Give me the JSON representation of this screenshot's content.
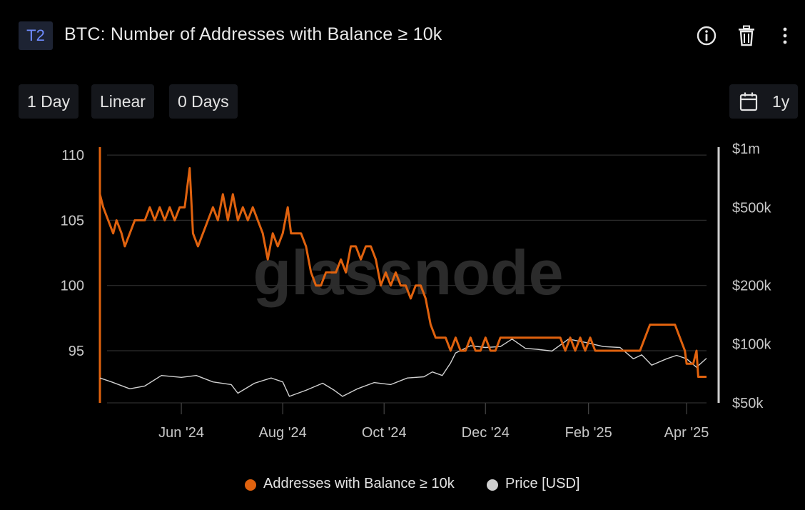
{
  "header": {
    "badge": "T2",
    "title": "BTC: Number of Addresses with Balance ≥ 10k",
    "icons": [
      "info-icon",
      "trash-icon",
      "more-vertical-icon"
    ]
  },
  "toolbar": {
    "resolution": "1 Day",
    "scale": "Linear",
    "moving_average": "0 Days",
    "range": "1y",
    "range_icon": "calendar-icon"
  },
  "watermark": "glassnode",
  "legend": [
    {
      "label": "Addresses with Balance ≥ 10k",
      "color": "#e0620e"
    },
    {
      "label": "Price [USD]",
      "color": "#d0d0d0"
    }
  ],
  "chart_data": {
    "type": "line",
    "x_ticks": [
      "Jun '24",
      "Aug '24",
      "Oct '24",
      "Dec '24",
      "Feb '25",
      "Apr '25"
    ],
    "x_range": [
      "2024-04-13",
      "2025-04-13"
    ],
    "y_left": {
      "ticks": [
        "110",
        "105",
        "100",
        "95"
      ],
      "range": [
        91,
        110.5
      ]
    },
    "y_right": {
      "scale": "log",
      "ticks": [
        "$1m",
        "$500k",
        "$200k",
        "$100k",
        "$50k"
      ],
      "range": [
        50000,
        1000000
      ]
    },
    "grid": true,
    "legend_position": "bottom",
    "series": [
      {
        "name": "Addresses with Balance ≥ 10k",
        "axis": "left",
        "color": "#e0620e",
        "points": [
          [
            "2024-04-13",
            107
          ],
          [
            "2024-04-15",
            106
          ],
          [
            "2024-04-18",
            105
          ],
          [
            "2024-04-21",
            104
          ],
          [
            "2024-04-23",
            105
          ],
          [
            "2024-04-26",
            104
          ],
          [
            "2024-04-28",
            103
          ],
          [
            "2024-05-01",
            104
          ],
          [
            "2024-05-04",
            105
          ],
          [
            "2024-05-07",
            105
          ],
          [
            "2024-05-10",
            105
          ],
          [
            "2024-05-13",
            106
          ],
          [
            "2024-05-16",
            105
          ],
          [
            "2024-05-19",
            106
          ],
          [
            "2024-05-22",
            105
          ],
          [
            "2024-05-25",
            106
          ],
          [
            "2024-05-28",
            105
          ],
          [
            "2024-05-31",
            106
          ],
          [
            "2024-06-03",
            106
          ],
          [
            "2024-06-06",
            109
          ],
          [
            "2024-06-08",
            104
          ],
          [
            "2024-06-11",
            103
          ],
          [
            "2024-06-14",
            104
          ],
          [
            "2024-06-17",
            105
          ],
          [
            "2024-06-20",
            106
          ],
          [
            "2024-06-23",
            105
          ],
          [
            "2024-06-26",
            107
          ],
          [
            "2024-06-29",
            105
          ],
          [
            "2024-07-02",
            107
          ],
          [
            "2024-07-05",
            105
          ],
          [
            "2024-07-08",
            106
          ],
          [
            "2024-07-11",
            105
          ],
          [
            "2024-07-14",
            106
          ],
          [
            "2024-07-17",
            105
          ],
          [
            "2024-07-20",
            104
          ],
          [
            "2024-07-23",
            102
          ],
          [
            "2024-07-26",
            104
          ],
          [
            "2024-07-29",
            103
          ],
          [
            "2024-08-01",
            104
          ],
          [
            "2024-08-04",
            106
          ],
          [
            "2024-08-06",
            104
          ],
          [
            "2024-08-09",
            104
          ],
          [
            "2024-08-12",
            104
          ],
          [
            "2024-08-15",
            103
          ],
          [
            "2024-08-18",
            101
          ],
          [
            "2024-08-21",
            100
          ],
          [
            "2024-08-24",
            100
          ],
          [
            "2024-08-27",
            101
          ],
          [
            "2024-08-30",
            101
          ],
          [
            "2024-09-02",
            101
          ],
          [
            "2024-09-05",
            102
          ],
          [
            "2024-09-08",
            101
          ],
          [
            "2024-09-11",
            103
          ],
          [
            "2024-09-14",
            103
          ],
          [
            "2024-09-17",
            102
          ],
          [
            "2024-09-20",
            103
          ],
          [
            "2024-09-23",
            103
          ],
          [
            "2024-09-26",
            102
          ],
          [
            "2024-09-29",
            100
          ],
          [
            "2024-10-02",
            101
          ],
          [
            "2024-10-05",
            100
          ],
          [
            "2024-10-08",
            101
          ],
          [
            "2024-10-11",
            100
          ],
          [
            "2024-10-14",
            100
          ],
          [
            "2024-10-17",
            99
          ],
          [
            "2024-10-20",
            100
          ],
          [
            "2024-10-23",
            100
          ],
          [
            "2024-10-26",
            99
          ],
          [
            "2024-10-29",
            97
          ],
          [
            "2024-11-01",
            96
          ],
          [
            "2024-11-04",
            96
          ],
          [
            "2024-11-07",
            96
          ],
          [
            "2024-11-10",
            95
          ],
          [
            "2024-11-13",
            96
          ],
          [
            "2024-11-16",
            95
          ],
          [
            "2024-11-19",
            95
          ],
          [
            "2024-11-22",
            96
          ],
          [
            "2024-11-25",
            95
          ],
          [
            "2024-11-28",
            95
          ],
          [
            "2024-12-01",
            96
          ],
          [
            "2024-12-04",
            95
          ],
          [
            "2024-12-07",
            95
          ],
          [
            "2024-12-10",
            96
          ],
          [
            "2024-12-13",
            96
          ],
          [
            "2024-12-16",
            96
          ],
          [
            "2024-12-19",
            96
          ],
          [
            "2024-12-22",
            96
          ],
          [
            "2024-12-25",
            96
          ],
          [
            "2024-12-28",
            96
          ],
          [
            "2024-12-31",
            96
          ],
          [
            "2025-01-03",
            96
          ],
          [
            "2025-01-06",
            96
          ],
          [
            "2025-01-09",
            96
          ],
          [
            "2025-01-12",
            96
          ],
          [
            "2025-01-15",
            96
          ],
          [
            "2025-01-18",
            95
          ],
          [
            "2025-01-21",
            96
          ],
          [
            "2025-01-24",
            95
          ],
          [
            "2025-01-27",
            96
          ],
          [
            "2025-01-30",
            95
          ],
          [
            "2025-02-02",
            96
          ],
          [
            "2025-02-05",
            95
          ],
          [
            "2025-02-08",
            95
          ],
          [
            "2025-02-11",
            95
          ],
          [
            "2025-02-14",
            95
          ],
          [
            "2025-02-17",
            95
          ],
          [
            "2025-02-20",
            95
          ],
          [
            "2025-02-23",
            95
          ],
          [
            "2025-02-26",
            95
          ],
          [
            "2025-03-01",
            95
          ],
          [
            "2025-03-04",
            95
          ],
          [
            "2025-03-07",
            96
          ],
          [
            "2025-03-10",
            97
          ],
          [
            "2025-03-13",
            97
          ],
          [
            "2025-03-16",
            97
          ],
          [
            "2025-03-19",
            97
          ],
          [
            "2025-03-22",
            97
          ],
          [
            "2025-03-25",
            97
          ],
          [
            "2025-03-28",
            96
          ],
          [
            "2025-03-31",
            95
          ],
          [
            "2025-04-01",
            94
          ],
          [
            "2025-04-03",
            94
          ],
          [
            "2025-04-05",
            94
          ],
          [
            "2025-04-07",
            95
          ],
          [
            "2025-04-08",
            93
          ],
          [
            "2025-04-10",
            93
          ],
          [
            "2025-04-13",
            93
          ]
        ]
      },
      {
        "name": "Price [USD]",
        "axis": "right",
        "color": "#d0d0d0",
        "points": [
          [
            "2024-04-13",
            67000
          ],
          [
            "2024-04-20",
            64000
          ],
          [
            "2024-05-01",
            59000
          ],
          [
            "2024-05-10",
            61000
          ],
          [
            "2024-05-20",
            69000
          ],
          [
            "2024-06-01",
            67500
          ],
          [
            "2024-06-10",
            69000
          ],
          [
            "2024-06-20",
            64000
          ],
          [
            "2024-07-01",
            62000
          ],
          [
            "2024-07-05",
            56000
          ],
          [
            "2024-07-15",
            63000
          ],
          [
            "2024-07-25",
            67000
          ],
          [
            "2024-08-01",
            64000
          ],
          [
            "2024-08-05",
            54000
          ],
          [
            "2024-08-15",
            58000
          ],
          [
            "2024-08-25",
            63000
          ],
          [
            "2024-09-01",
            58000
          ],
          [
            "2024-09-06",
            54000
          ],
          [
            "2024-09-15",
            59000
          ],
          [
            "2024-09-25",
            63500
          ],
          [
            "2024-10-05",
            62000
          ],
          [
            "2024-10-15",
            67000
          ],
          [
            "2024-10-25",
            68000
          ],
          [
            "2024-10-30",
            72000
          ],
          [
            "2024-11-05",
            69000
          ],
          [
            "2024-11-10",
            80000
          ],
          [
            "2024-11-13",
            90000
          ],
          [
            "2024-11-22",
            98000
          ],
          [
            "2024-12-01",
            96000
          ],
          [
            "2024-12-10",
            97000
          ],
          [
            "2024-12-17",
            106000
          ],
          [
            "2024-12-25",
            95000
          ],
          [
            "2025-01-01",
            94000
          ],
          [
            "2025-01-10",
            92000
          ],
          [
            "2025-01-20",
            106000
          ],
          [
            "2025-01-30",
            102000
          ],
          [
            "2025-02-10",
            97000
          ],
          [
            "2025-02-20",
            96000
          ],
          [
            "2025-02-28",
            84000
          ],
          [
            "2025-03-05",
            88000
          ],
          [
            "2025-03-11",
            78000
          ],
          [
            "2025-03-20",
            84000
          ],
          [
            "2025-03-26",
            87500
          ],
          [
            "2025-04-01",
            84000
          ],
          [
            "2025-04-07",
            76000
          ],
          [
            "2025-04-13",
            84500
          ]
        ]
      }
    ]
  }
}
